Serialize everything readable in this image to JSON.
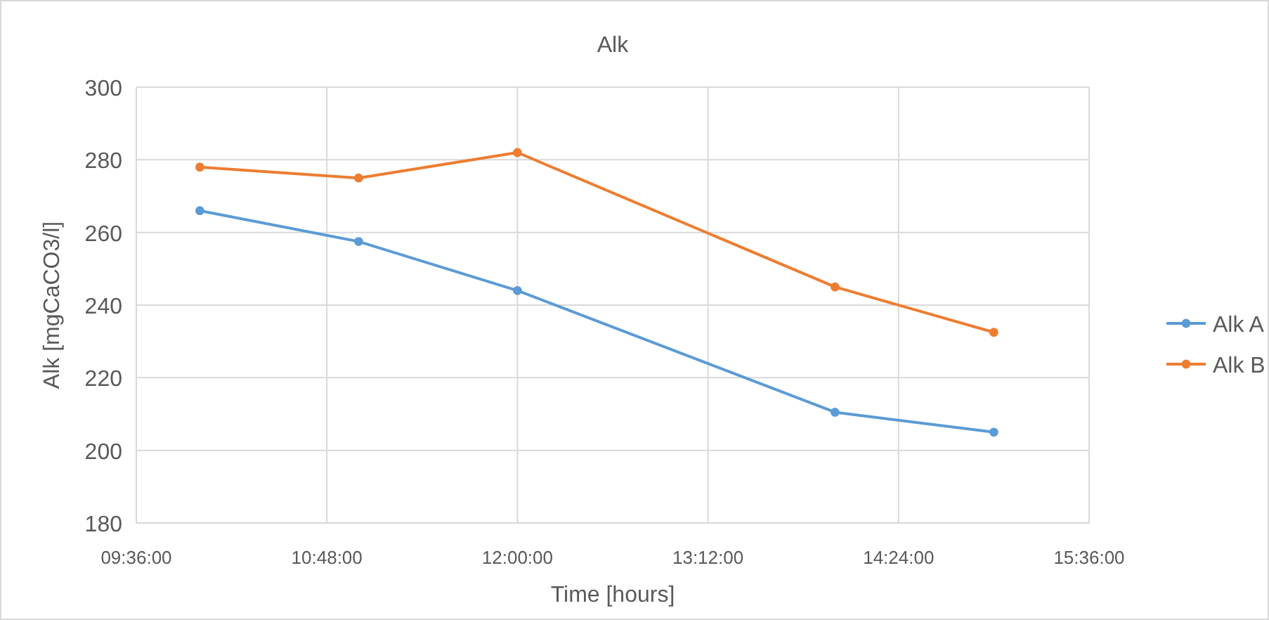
{
  "chart_data": {
    "type": "line",
    "title": "Alk",
    "xlabel": "Time [hours]",
    "ylabel": "Alk [mgCaCO3/l]",
    "x": [
      10.0,
      11.0,
      12.0,
      14.0,
      15.0
    ],
    "series": [
      {
        "name": "Alk A",
        "color": "#5b9bd5",
        "values": [
          266,
          257.5,
          244,
          210.5,
          205
        ]
      },
      {
        "name": "Alk B",
        "color": "#ed7d31",
        "values": [
          278,
          275,
          282,
          245,
          232.5
        ]
      }
    ],
    "xlim": [
      9.6,
      15.6
    ],
    "xticks": [
      {
        "value": 9.6,
        "label": "09:36:00"
      },
      {
        "value": 10.8,
        "label": "10:48:00"
      },
      {
        "value": 12,
        "label": "12:00:00"
      },
      {
        "value": 13.2,
        "label": "13:12:00"
      },
      {
        "value": 14.4,
        "label": "14:24:00"
      },
      {
        "value": 15.6,
        "label": "15:36:00"
      }
    ],
    "ylim": [
      180,
      300
    ],
    "yticks": [
      180,
      200,
      220,
      240,
      260,
      280,
      300
    ],
    "grid": true,
    "legend": "right",
    "marker": "circle",
    "line_style": "solid"
  }
}
